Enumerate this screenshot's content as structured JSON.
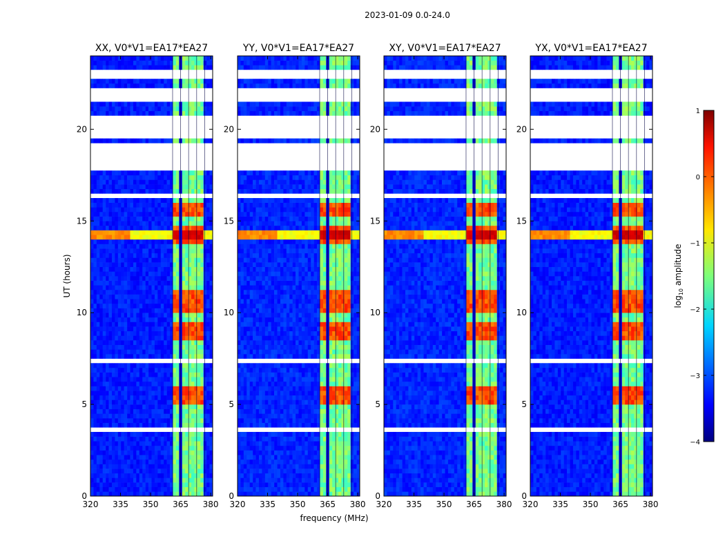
{
  "figure_title": "2023-01-09 0.0-24.0",
  "chart_data": {
    "type": "heatmap",
    "title": "2023-01-09 0.0-24.0",
    "xlabel": "frequency (MHz)",
    "ylabel": "UT (hours)",
    "xlim": [
      320,
      381
    ],
    "ylim": [
      0,
      24
    ],
    "xticks": [
      320,
      335,
      350,
      365,
      380
    ],
    "yticks": [
      0,
      5,
      10,
      15,
      20
    ],
    "panels": [
      {
        "title": "XX, V0*V1=EA17*EA27",
        "pol": "XX"
      },
      {
        "title": "YY, V0*V1=EA17*EA27",
        "pol": "YY"
      },
      {
        "title": "XY, V0*V1=EA17*EA27",
        "pol": "XY"
      },
      {
        "title": "YX, V0*V1=EA17*EA27",
        "pol": "YX"
      }
    ],
    "rfi_band_mhz": [
      361,
      377
    ],
    "rfi_subband_edges_mhz": [
      361,
      365,
      369,
      373,
      377
    ],
    "strong_rfi_hours": [
      [
        4.9,
        6.0
      ],
      [
        8.6,
        9.5
      ],
      [
        9.9,
        11.2
      ],
      [
        13.8,
        14.7
      ],
      [
        15.2,
        16.0
      ]
    ],
    "broadband_event_hours": [
      13.9,
      14.6
    ],
    "flagged_hours": [
      [
        3.4,
        3.8
      ],
      [
        17.7,
        19.3
      ],
      [
        19.4,
        20.8
      ],
      [
        21.4,
        22.2
      ],
      [
        22.7,
        23.3
      ],
      [
        16.3,
        16.6
      ],
      [
        7.3,
        7.5
      ]
    ],
    "colorbar": {
      "label": "log10 amplitude",
      "label_plain": "log",
      "label_sub": "10",
      "label_rest": " amplitude",
      "range": [
        -4,
        1
      ],
      "ticks": [
        1,
        0,
        -1,
        -2,
        -3,
        -4
      ],
      "tick_labels": [
        "1",
        "0",
        "−1",
        "−2",
        "−3",
        "−4"
      ],
      "colormap": "jet"
    }
  }
}
